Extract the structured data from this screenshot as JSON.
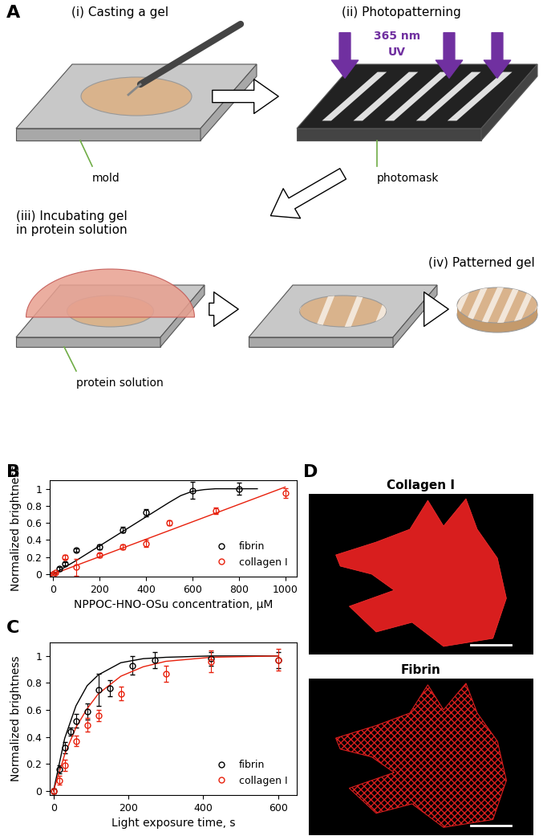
{
  "diagram": {
    "panel_label": "A",
    "steps": [
      {
        "label": "(i) Casting a gel",
        "part": "mold"
      },
      {
        "label": "(ii) Photopatterning",
        "light": [
          "365 nm",
          "UV"
        ],
        "part": "photomask"
      },
      {
        "label": "(iii) Incubating gel\nin protein solution",
        "part": "protein solution"
      },
      {
        "label": "(iv) Patterned gel"
      }
    ]
  },
  "chart_data": [
    {
      "panel_label": "B",
      "type": "scatter",
      "x_label": "NPPOC-HNO-OSu concentration, μM",
      "y_label": "Normalized brightness",
      "xlim": [
        -15,
        1050
      ],
      "ylim": [
        -0.03,
        1.1
      ],
      "xticks": [
        0,
        200,
        400,
        600,
        800,
        1000
      ],
      "yticks": [
        0,
        0.2,
        0.4,
        0.6,
        0.8,
        1
      ],
      "legend": "lower right",
      "series": [
        {
          "name": "fibrin",
          "color": "#000000",
          "marker": "o",
          "line_style": "-",
          "x": [
            0,
            25,
            50,
            100,
            200,
            300,
            400,
            600,
            800
          ],
          "values": [
            0,
            0.06,
            0.12,
            0.28,
            0.32,
            0.52,
            0.72,
            0.98,
            1.0
          ],
          "errors": [
            0.01,
            0.02,
            0.02,
            0.02,
            0.03,
            0.03,
            0.04,
            0.1,
            0.07
          ],
          "fit": {
            "x": [
              0,
              100,
              200,
              300,
              400,
              500,
              550,
              600,
              650,
              700,
              800,
              880
            ],
            "y": [
              0,
              0.16,
              0.33,
              0.5,
              0.67,
              0.84,
              0.92,
              0.97,
              0.99,
              1.0,
              1.0,
              1.0
            ]
          }
        },
        {
          "name": "collagen I",
          "color": "#e8200c",
          "marker": "o",
          "line_style": "-",
          "x": [
            0,
            10,
            50,
            100,
            200,
            300,
            400,
            500,
            700,
            1000
          ],
          "values": [
            0,
            0.02,
            0.2,
            0.08,
            0.22,
            0.32,
            0.36,
            0.6,
            0.74,
            0.95
          ],
          "errors": [
            0.01,
            0.01,
            0.02,
            0.1,
            0.02,
            0.03,
            0.04,
            0.03,
            0.04,
            0.06
          ],
          "fit": {
            "x": [
              0,
              1000
            ],
            "y": [
              0,
              1.02
            ]
          }
        }
      ]
    },
    {
      "panel_label": "C",
      "type": "scatter",
      "x_label": "Light exposure time, s",
      "y_label": "Normalized brightness",
      "xlim": [
        -10,
        650
      ],
      "ylim": [
        -0.03,
        1.1
      ],
      "xticks": [
        0,
        200,
        400,
        600
      ],
      "yticks": [
        0,
        0.2,
        0.4,
        0.6,
        0.8,
        1
      ],
      "legend": "lower right",
      "series": [
        {
          "name": "fibrin",
          "color": "#000000",
          "marker": "o",
          "line_style": "-",
          "x": [
            0,
            15,
            30,
            45,
            60,
            90,
            120,
            150,
            210,
            270,
            420,
            600
          ],
          "values": [
            0,
            0.16,
            0.32,
            0.44,
            0.52,
            0.59,
            0.75,
            0.76,
            0.93,
            0.97,
            0.98,
            0.97
          ],
          "errors": [
            0.02,
            0.03,
            0.04,
            0.03,
            0.05,
            0.06,
            0.12,
            0.06,
            0.07,
            0.06,
            0.05,
            0.06
          ],
          "fit": {
            "x": [
              0,
              30,
              60,
              90,
              120,
              180,
              240,
              300,
              420,
              600
            ],
            "y": [
              0,
              0.39,
              0.63,
              0.78,
              0.86,
              0.95,
              0.98,
              0.99,
              1.0,
              1.0
            ]
          }
        },
        {
          "name": "collagen I",
          "color": "#e8200c",
          "marker": "o",
          "line_style": "-",
          "x": [
            0,
            15,
            30,
            60,
            90,
            120,
            180,
            300,
            420,
            600
          ],
          "values": [
            0,
            0.08,
            0.19,
            0.37,
            0.49,
            0.56,
            0.72,
            0.87,
            0.96,
            0.97
          ],
          "errors": [
            0.02,
            0.03,
            0.04,
            0.04,
            0.05,
            0.04,
            0.05,
            0.06,
            0.08,
            0.08
          ],
          "fit": {
            "x": [
              0,
              30,
              60,
              90,
              120,
              180,
              240,
              300,
              420,
              600
            ],
            "y": [
              0,
              0.27,
              0.47,
              0.61,
              0.72,
              0.85,
              0.92,
              0.96,
              0.99,
              1.0
            ]
          }
        }
      ]
    }
  ],
  "images": {
    "panel_label": "D",
    "panels": [
      {
        "title": "Collagen I"
      },
      {
        "title": "Fibrin"
      }
    ]
  }
}
